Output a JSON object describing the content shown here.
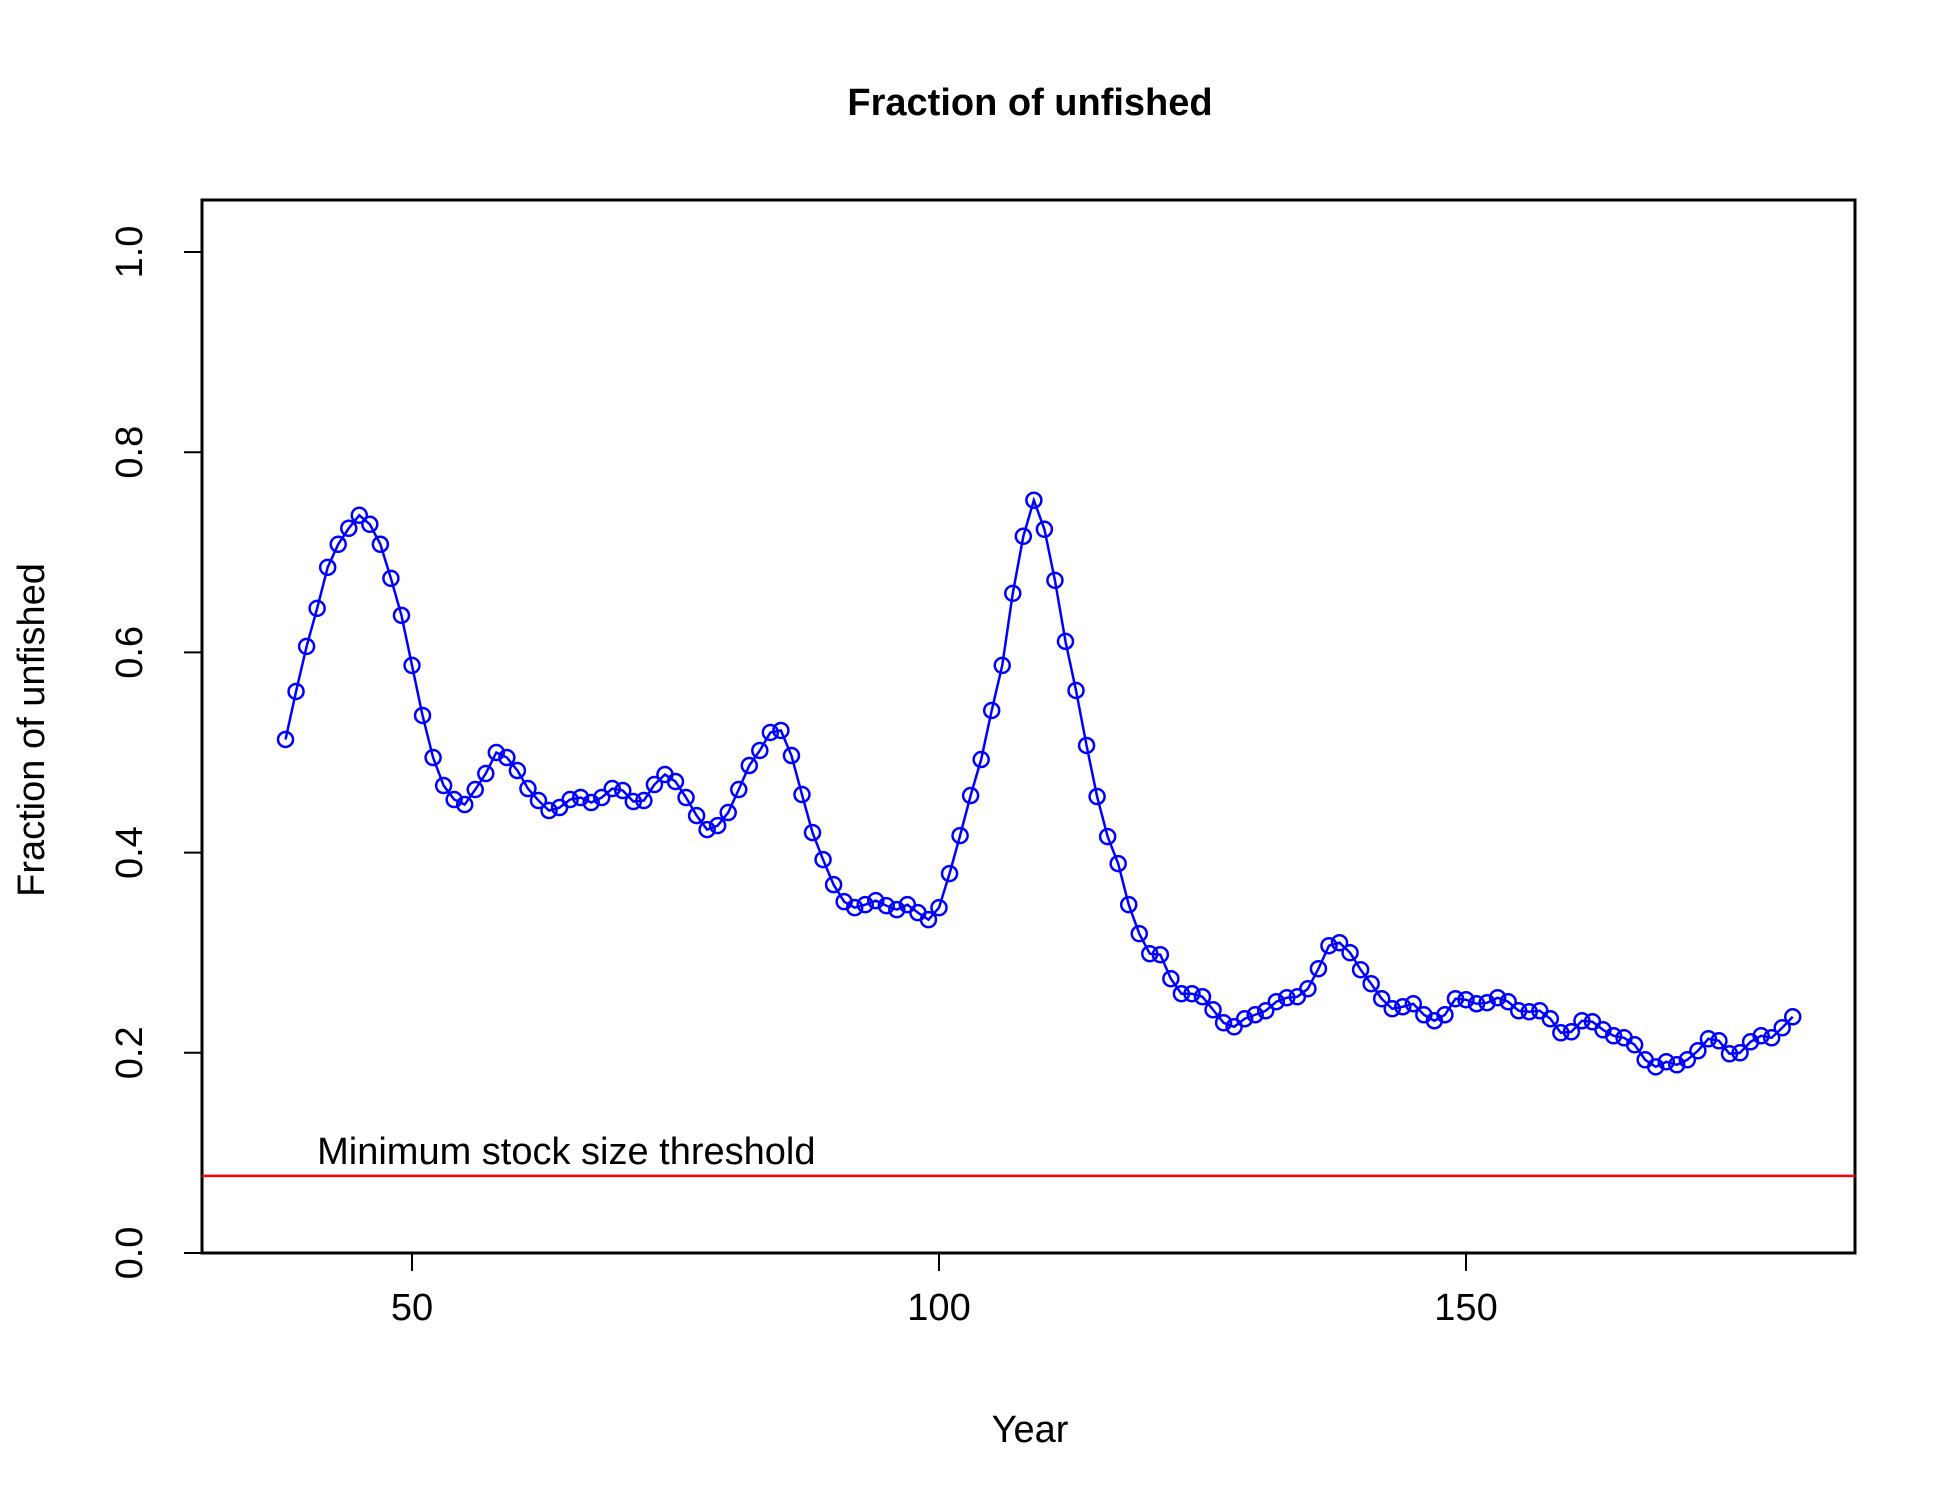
{
  "chart_data": {
    "type": "line",
    "title": "Fraction of unfished",
    "xlabel": "Year",
    "ylabel": "Fraction of unfished",
    "xlim": [
      30,
      188
    ],
    "ylim": [
      0.0,
      1.05
    ],
    "x_ticks": [
      50,
      100,
      150
    ],
    "x_tick_labels": [
      "50",
      "100",
      "150"
    ],
    "y_ticks": [
      0.0,
      0.2,
      0.4,
      0.6,
      0.8,
      1.0
    ],
    "y_tick_labels": [
      "0.0",
      "0.2",
      "0.4",
      "0.6",
      "0.8",
      "1.0"
    ],
    "grid": false,
    "colors": {
      "series": "#0000ff",
      "threshold": "#ff0000",
      "axis": "#000000"
    },
    "series": [
      {
        "x": [
          38,
          39,
          40,
          41,
          42,
          43,
          44,
          45,
          46,
          47,
          48,
          49,
          50,
          51,
          52,
          53,
          54,
          55,
          56,
          57,
          58,
          59,
          60,
          61,
          62,
          63,
          64,
          65,
          66,
          67,
          68,
          69,
          70,
          71,
          72,
          73,
          74,
          75,
          76,
          77,
          78,
          79,
          80,
          81,
          82,
          83,
          84,
          85,
          86,
          87,
          88,
          89,
          90,
          91,
          92,
          93,
          94,
          95,
          96,
          97,
          98,
          99,
          100,
          101,
          102,
          103,
          104,
          105,
          106,
          107,
          108,
          109,
          110,
          111,
          112,
          113,
          114,
          115,
          116,
          117,
          118,
          119,
          120,
          121,
          122,
          123,
          124,
          125,
          126,
          127,
          128,
          129,
          130,
          131,
          132,
          133,
          134,
          135,
          136,
          137,
          138,
          139,
          140,
          141,
          142,
          143,
          144,
          145,
          146,
          147,
          148,
          149,
          150,
          151,
          152,
          153,
          154,
          155,
          156,
          157,
          158,
          159,
          160,
          161,
          162,
          163,
          164,
          165,
          166,
          167,
          168,
          169,
          170,
          171,
          172,
          173,
          174,
          175,
          176,
          177,
          178,
          179,
          180,
          181
        ],
        "values": [
          0.513,
          0.561,
          0.606,
          0.644,
          0.685,
          0.708,
          0.724,
          0.737,
          0.728,
          0.708,
          0.674,
          0.637,
          0.587,
          0.537,
          0.495,
          0.467,
          0.453,
          0.448,
          0.463,
          0.479,
          0.5,
          0.495,
          0.482,
          0.464,
          0.452,
          0.442,
          0.445,
          0.453,
          0.455,
          0.45,
          0.455,
          0.464,
          0.462,
          0.451,
          0.452,
          0.468,
          0.478,
          0.471,
          0.455,
          0.437,
          0.423,
          0.427,
          0.44,
          0.463,
          0.487,
          0.502,
          0.52,
          0.522,
          0.497,
          0.458,
          0.42,
          0.393,
          0.368,
          0.351,
          0.345,
          0.348,
          0.352,
          0.347,
          0.343,
          0.348,
          0.34,
          0.333,
          0.345,
          0.379,
          0.417,
          0.457,
          0.493,
          0.542,
          0.587,
          0.659,
          0.716,
          0.752,
          0.723,
          0.672,
          0.611,
          0.562,
          0.507,
          0.456,
          0.416,
          0.389,
          0.348,
          0.319,
          0.299,
          0.298,
          0.274,
          0.259,
          0.259,
          0.256,
          0.243,
          0.23,
          0.226,
          0.234,
          0.238,
          0.242,
          0.251,
          0.255,
          0.256,
          0.264,
          0.284,
          0.307,
          0.31,
          0.3,
          0.283,
          0.269,
          0.254,
          0.244,
          0.246,
          0.249,
          0.238,
          0.232,
          0.238,
          0.254,
          0.253,
          0.249,
          0.25,
          0.255,
          0.251,
          0.242,
          0.241,
          0.242,
          0.234,
          0.22,
          0.221,
          0.232,
          0.231,
          0.223,
          0.217,
          0.215,
          0.208,
          0.193,
          0.186,
          0.191,
          0.188,
          0.193,
          0.202,
          0.214,
          0.212,
          0.199,
          0.2,
          0.211,
          0.217,
          0.215,
          0.225,
          0.236
        ]
      }
    ],
    "hlines": [
      {
        "y": 0.077,
        "label": "Minimum stock size threshold",
        "label_x": 41
      }
    ]
  }
}
